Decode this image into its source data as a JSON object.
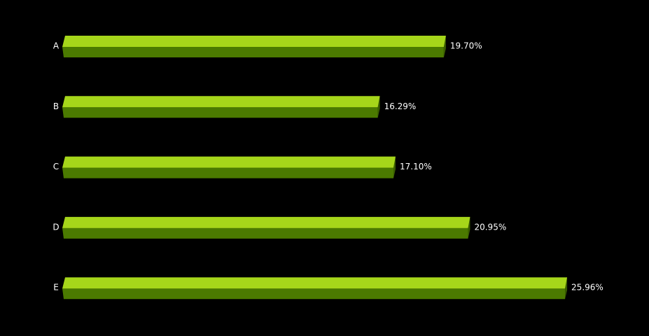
{
  "chart_data": {
    "type": "bar",
    "orientation": "horizontal",
    "categories": [
      "A",
      "B",
      "C",
      "D",
      "E"
    ],
    "values": [
      19.7,
      16.29,
      17.1,
      20.95,
      25.96
    ],
    "value_labels": [
      "19.70%",
      "16.29%",
      "17.10%",
      "20.95%",
      "25.96%"
    ],
    "color": "#a6d61a"
  }
}
